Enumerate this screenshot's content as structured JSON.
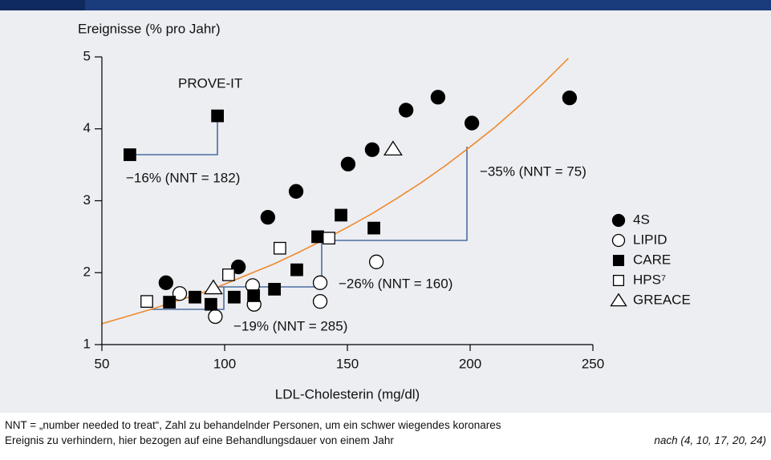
{
  "chart_data": {
    "type": "scatter",
    "ylabel": "Ereignisse (% pro Jahr)",
    "xlabel": "LDL-Cholesterin (mg/dl)",
    "xlim": [
      50,
      250
    ],
    "xticks": [
      50,
      100,
      150,
      200,
      250
    ],
    "ylim": [
      1,
      5
    ],
    "yticks": [
      1,
      2,
      3,
      4,
      5
    ],
    "series": [
      {
        "name": "4S",
        "color": "#000000",
        "marker": "circle",
        "filled": true,
        "x": [
          76.1,
          105.6,
          117.6,
          129.1,
          150.3,
          160.1,
          173.9,
          186.9,
          200.7,
          240.5
        ],
        "values": [
          1.86,
          2.08,
          2.77,
          3.13,
          3.51,
          3.71,
          4.26,
          4.44,
          4.08,
          4.43
        ]
      },
      {
        "name": "LIPID",
        "color": "#000000",
        "marker": "circle",
        "filled": false,
        "x": [
          81.7,
          96.2,
          111.4,
          112.0,
          138.9,
          138.9,
          161.8
        ],
        "values": [
          1.71,
          1.39,
          1.82,
          1.56,
          1.86,
          1.6,
          2.15
        ]
      },
      {
        "name": "CARE",
        "color": "#000000",
        "marker": "square",
        "filled": true,
        "x": [
          61.4,
          97.1,
          77.5,
          87.9,
          94.4,
          103.9,
          111.8,
          120.3,
          129.4,
          137.9,
          147.4,
          160.8
        ],
        "values": [
          3.64,
          4.18,
          1.59,
          1.66,
          1.56,
          1.66,
          1.68,
          1.77,
          2.04,
          2.5,
          2.8,
          2.62
        ]
      },
      {
        "name": "HPS⁷",
        "color": "#000000",
        "marker": "square",
        "filled": false,
        "x": [
          68.3,
          101.6,
          122.5,
          142.5
        ],
        "values": [
          1.6,
          1.97,
          2.34,
          2.48
        ]
      },
      {
        "name": "GREACE",
        "color": "#000000",
        "marker": "triangle",
        "filled": false,
        "x": [
          95.4,
          168.6
        ],
        "values": [
          1.79,
          3.72
        ]
      }
    ],
    "curve": {
      "color": "#ef8a2e",
      "x": [
        50,
        60,
        70,
        80,
        90,
        100,
        110,
        120,
        130,
        140,
        150,
        160,
        170,
        180,
        190,
        200,
        210,
        220,
        230,
        240
      ],
      "values": [
        1.29,
        1.39,
        1.49,
        1.6,
        1.71,
        1.84,
        1.98,
        2.12,
        2.28,
        2.45,
        2.63,
        2.82,
        3.03,
        3.25,
        3.49,
        3.75,
        4.02,
        4.32,
        4.64,
        4.98
      ]
    },
    "annotations": [
      "PROVE-IT",
      "−16% (NNT = 182)",
      "−35% (NNT = 75)",
      "−26% (NNT = 160)",
      "−19% (NNT = 285)"
    ],
    "footnote": [
      "NNT = „number needed to treat“, Zahl zu behandelnder Personen, um ein schwer wiegendes koronares",
      "Ereignis zu verhindern, hier bezogen auf eine Behandlungsdauer von einem Jahr"
    ],
    "source": "nach (4, 10, 17, 20, 24)"
  }
}
